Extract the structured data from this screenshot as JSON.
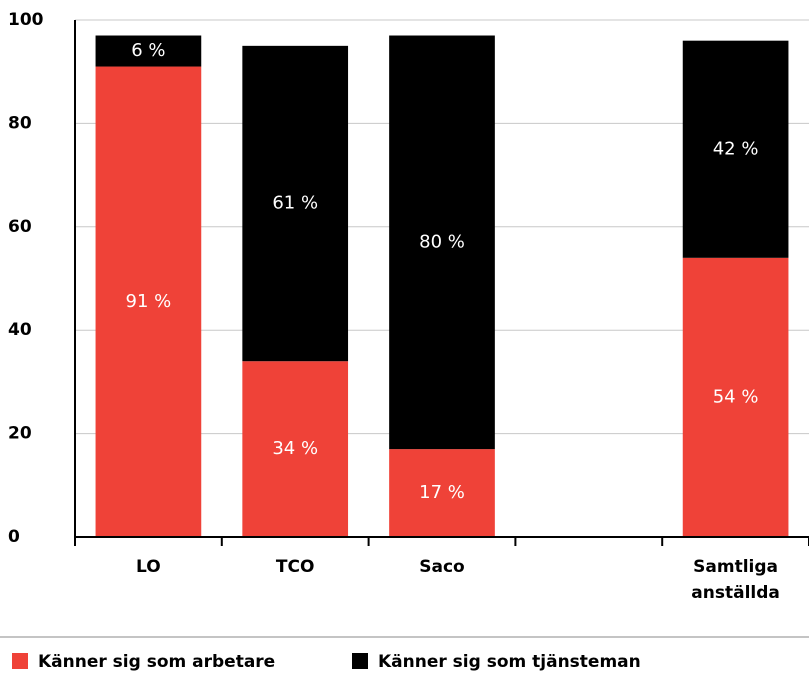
{
  "chart_data": {
    "type": "bar",
    "stacked": true,
    "categories": [
      "LO",
      "TCO",
      "Saco",
      null,
      "Samtliga anställda"
    ],
    "series": [
      {
        "name": "Känner sig som arbetare",
        "color": "#ef4238",
        "values": [
          91,
          34,
          17,
          null,
          54
        ],
        "value_labels": [
          "91 %",
          "34 %",
          "17 %",
          null,
          "54 %"
        ]
      },
      {
        "name": "Känner sig som tjänsteman",
        "color": "#000000",
        "values": [
          6,
          61,
          80,
          null,
          42
        ],
        "value_labels": [
          "6 %",
          "61 %",
          "80 %",
          null,
          "42 %"
        ]
      }
    ],
    "ylim": [
      0,
      100
    ],
    "yticks": [
      0,
      20,
      40,
      60,
      80,
      100
    ],
    "grid": true,
    "legend": "bottom"
  }
}
